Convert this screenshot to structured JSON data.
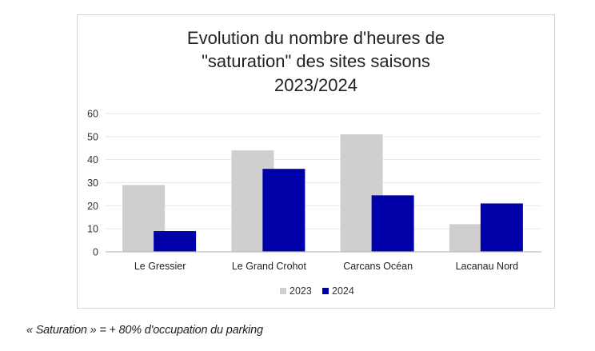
{
  "chart_data": {
    "type": "bar",
    "title_lines": [
      "Evolution du nombre d'heures de",
      "\"saturation\" des sites saisons",
      "2023/2024"
    ],
    "categories": [
      "Le Gressier",
      "Le Grand Crohot",
      "Carcans Océan",
      "Lacanau Nord"
    ],
    "series": [
      {
        "name": "2023",
        "color": "#d0cece",
        "values": [
          29,
          44,
          51,
          12
        ]
      },
      {
        "name": "2024",
        "color": "#0000a8",
        "values": [
          9,
          36,
          24.5,
          21
        ]
      }
    ],
    "ylim": [
      0,
      60
    ],
    "yticks": [
      "0",
      "10",
      "20",
      "30",
      "40",
      "50",
      "60"
    ],
    "grid": true,
    "legend_position": "bottom"
  },
  "footnote": "« Saturation » = + 80% d'occupation du parking"
}
